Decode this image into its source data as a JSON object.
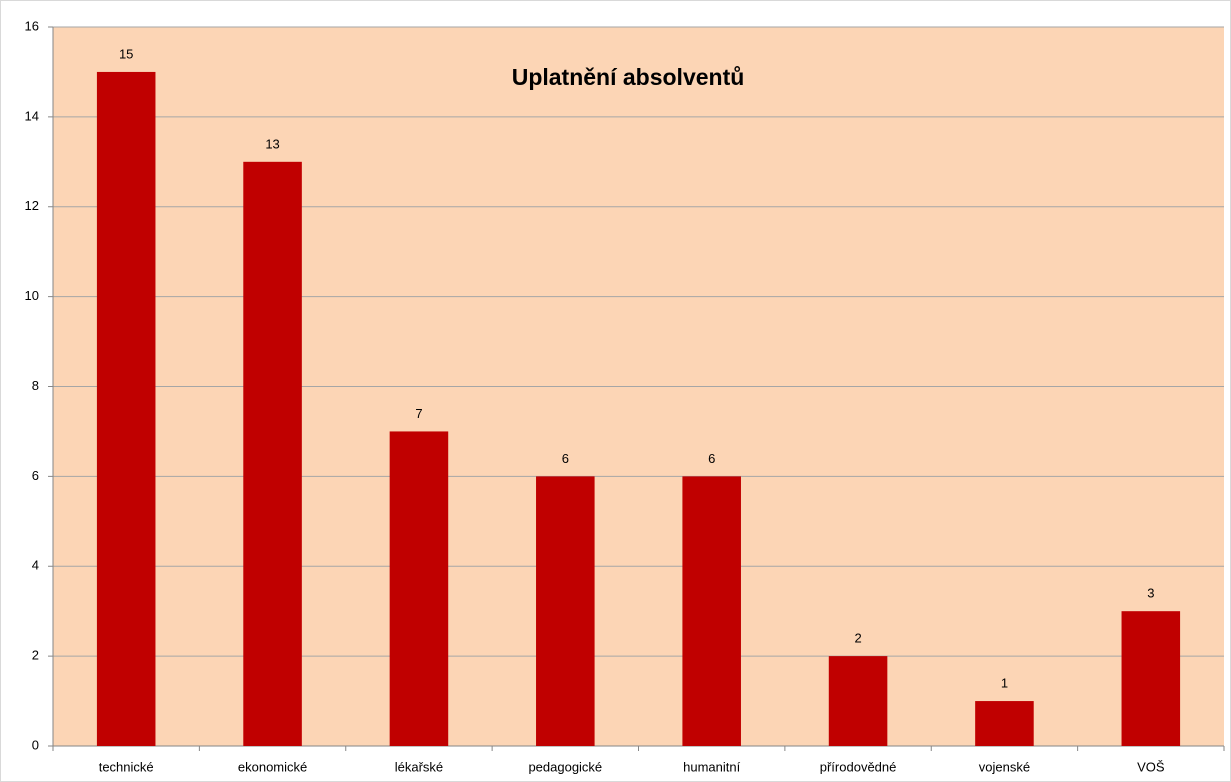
{
  "chart_data": {
    "type": "bar",
    "title": "Uplatnění absolventů",
    "categories": [
      "technické",
      "ekonomické",
      "lékařské",
      "pedagogické",
      "humanitní",
      "přírodovědné",
      "vojenské",
      "VOŠ"
    ],
    "values": [
      15,
      13,
      7,
      6,
      6,
      2,
      1,
      3
    ],
    "color": "#c00000",
    "ylim": [
      0,
      16
    ],
    "yticks": [
      0,
      2,
      4,
      6,
      8,
      10,
      12,
      14,
      16
    ],
    "grid": true,
    "data_labels": true
  }
}
